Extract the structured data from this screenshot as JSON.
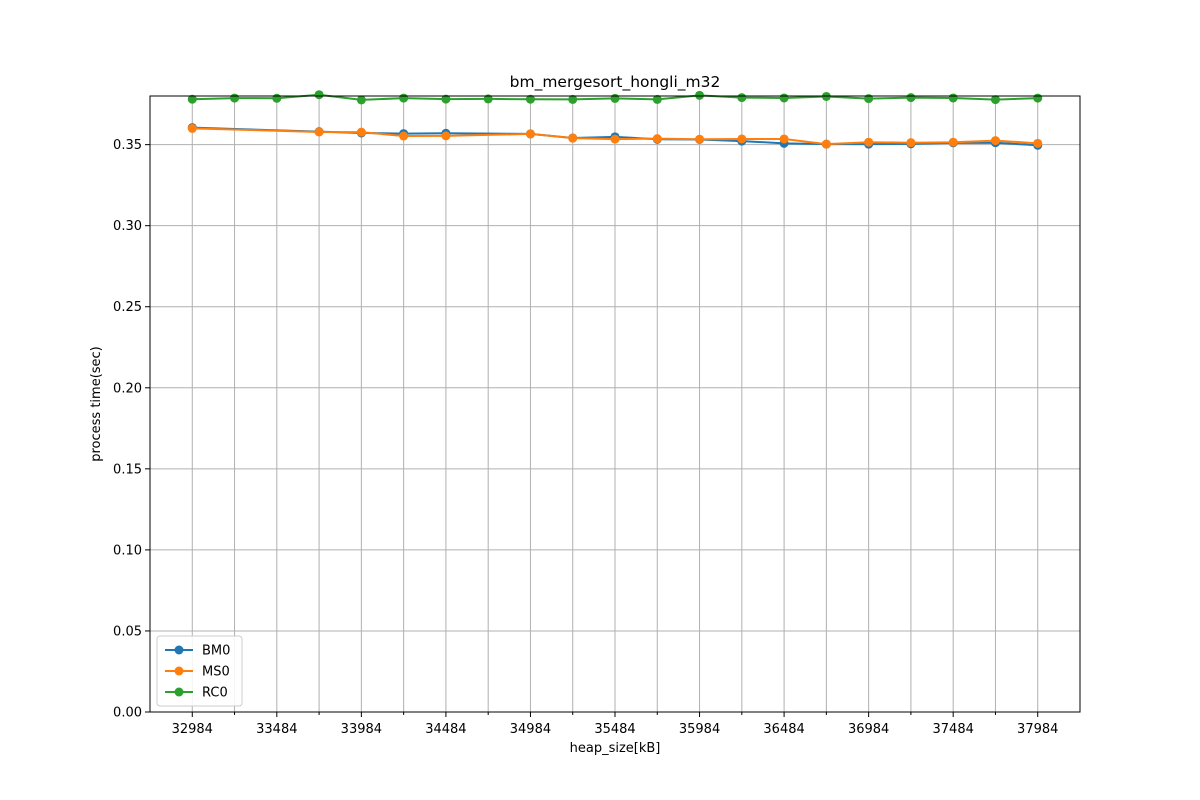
{
  "chart_data": {
    "type": "line",
    "title": "bm_mergesort_hongli_m32",
    "xlabel": "heap_size[kB]",
    "ylabel": "process time(sec)",
    "xlim": [
      32734,
      38234
    ],
    "ylim": [
      0.0,
      0.38
    ],
    "x_ticks": [
      32984,
      33484,
      33984,
      34484,
      34984,
      35484,
      35984,
      36484,
      36984,
      37484,
      37984
    ],
    "x_tick_labels": [
      "32984",
      "33484",
      "33984",
      "34484",
      "34984",
      "35484",
      "35984",
      "36484",
      "36984",
      "37484",
      "37984"
    ],
    "x_minor_ticks": [
      33234,
      33734,
      34234,
      34734,
      35234,
      35734,
      36234,
      36734,
      37234,
      37734
    ],
    "y_ticks": [
      0.0,
      0.05,
      0.1,
      0.15,
      0.2,
      0.25,
      0.3,
      0.35
    ],
    "y_tick_labels": [
      "0.00",
      "0.05",
      "0.10",
      "0.15",
      "0.20",
      "0.25",
      "0.30",
      "0.35"
    ],
    "grid": true,
    "legend_position": "lower-left",
    "series": [
      {
        "name": "BM0",
        "color": "#1f77b4",
        "marker": "circle",
        "x": [
          32984,
          33734,
          33984,
          34234,
          34484,
          34984,
          35234,
          35484,
          35734,
          35984,
          36234,
          36484,
          36734,
          36984,
          37234,
          37484,
          37734,
          37984
        ],
        "y": [
          0.3605,
          0.358,
          0.3572,
          0.3568,
          0.357,
          0.3566,
          0.3541,
          0.3548,
          0.3533,
          0.3532,
          0.3522,
          0.3508,
          0.3503,
          0.3503,
          0.3505,
          0.3511,
          0.3512,
          0.3496
        ]
      },
      {
        "name": "MS0",
        "color": "#ff7f0e",
        "marker": "circle",
        "x": [
          32984,
          33734,
          33984,
          34234,
          34484,
          34984,
          35234,
          35484,
          35734,
          35984,
          36234,
          36484,
          36734,
          36984,
          37234,
          37484,
          37734,
          37984
        ],
        "y": [
          0.36,
          0.3578,
          0.3577,
          0.3553,
          0.3554,
          0.3566,
          0.354,
          0.3534,
          0.3537,
          0.3533,
          0.3535,
          0.3535,
          0.3503,
          0.3515,
          0.3512,
          0.3515,
          0.3525,
          0.3508
        ]
      },
      {
        "name": "RC0",
        "color": "#2ca02c",
        "marker": "circle",
        "x": [
          32984,
          33234,
          33484,
          33734,
          33984,
          34234,
          34484,
          34734,
          34984,
          35234,
          35484,
          35734,
          35984,
          36234,
          36484,
          36734,
          36984,
          37234,
          37484,
          37734,
          37984
        ],
        "y": [
          0.378,
          0.3787,
          0.3786,
          0.3808,
          0.3776,
          0.3787,
          0.3781,
          0.3782,
          0.378,
          0.3779,
          0.3785,
          0.3779,
          0.3804,
          0.379,
          0.3788,
          0.3797,
          0.3784,
          0.379,
          0.3788,
          0.3778,
          0.3787
        ]
      }
    ]
  }
}
